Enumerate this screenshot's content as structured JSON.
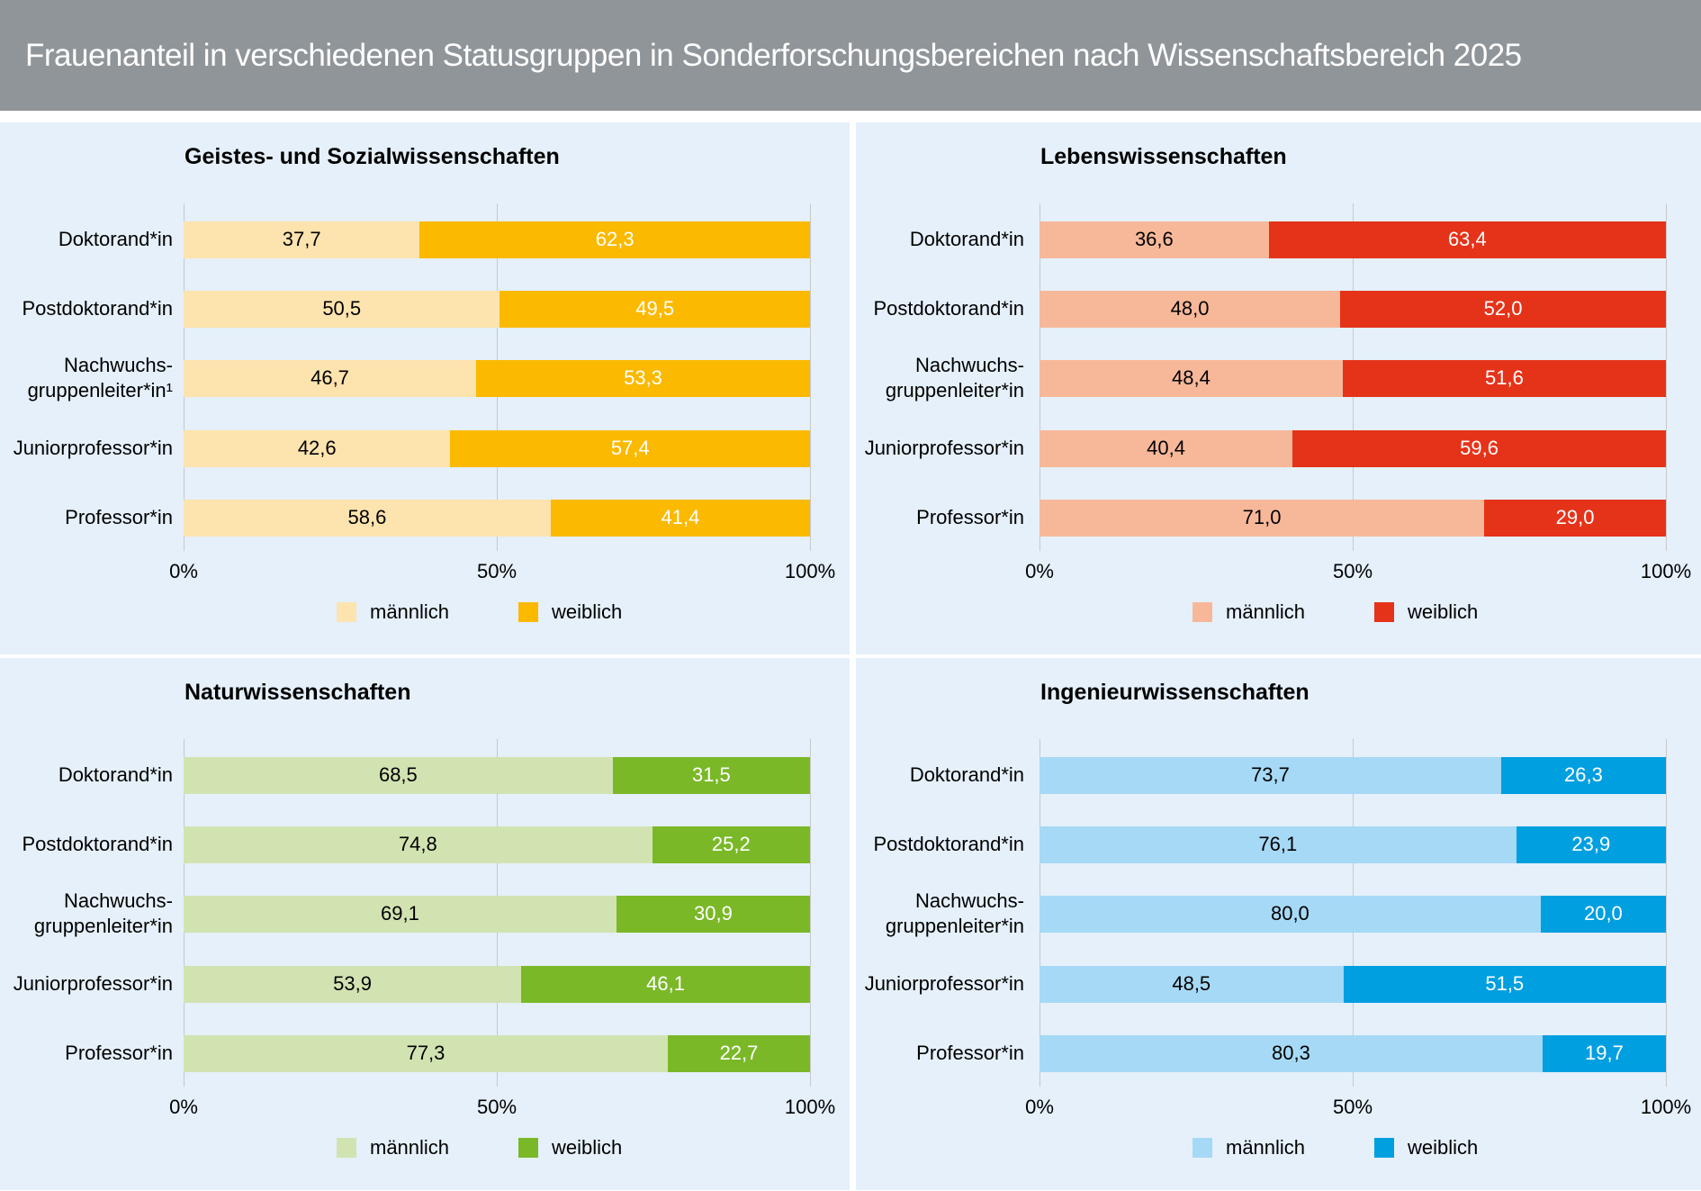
{
  "title": "Frauenanteil in verschiedenen Statusgruppen in Sonderforschungsbereichen nach Wissenschaftsbereich 2025",
  "chart_data": [
    {
      "type": "bar",
      "orientation": "horizontal",
      "stacked": true,
      "title": "Geistes- und Sozialwissenschaften",
      "categories": [
        "Doktorand*in",
        "Postdoktorand*in",
        "Nachwuchs-\ngruppenleiter*in¹",
        "Juniorprofessor*in",
        "Professor*in"
      ],
      "series": [
        {
          "name": "männlich",
          "color": "#fde3ae",
          "label_color": "#000000",
          "values": [
            37.7,
            50.5,
            46.7,
            42.6,
            58.6
          ],
          "value_labels": [
            "37,7",
            "50,5",
            "46,7",
            "42,6",
            "58,6"
          ]
        },
        {
          "name": "weiblich",
          "color": "#fbb900",
          "label_color": "#ffffff",
          "values": [
            62.3,
            49.5,
            53.3,
            57.4,
            41.4
          ],
          "value_labels": [
            "62,3",
            "49,5",
            "53,3",
            "57,4",
            "41,4"
          ]
        }
      ],
      "xlim": [
        0,
        100
      ],
      "xticks": [
        {
          "value": 0,
          "label": "0%"
        },
        {
          "value": 50,
          "label": "50%"
        },
        {
          "value": 100,
          "label": "100%"
        }
      ],
      "grid": true,
      "legend": "bottom"
    },
    {
      "type": "bar",
      "orientation": "horizontal",
      "stacked": true,
      "title": "Lebenswissenschaften",
      "categories": [
        "Doktorand*in",
        "Postdoktorand*in",
        "Nachwuchs-\ngruppenleiter*in",
        "Juniorprofessor*in",
        "Professor*in"
      ],
      "series": [
        {
          "name": "männlich",
          "color": "#f7b89a",
          "label_color": "#000000",
          "values": [
            36.6,
            48.0,
            48.4,
            40.4,
            71.0
          ],
          "value_labels": [
            "36,6",
            "48,0",
            "48,4",
            "40,4",
            "71,0"
          ]
        },
        {
          "name": "weiblich",
          "color": "#e5331a",
          "label_color": "#ffffff",
          "values": [
            63.4,
            52.0,
            51.6,
            59.6,
            29.0
          ],
          "value_labels": [
            "63,4",
            "52,0",
            "51,6",
            "59,6",
            "29,0"
          ]
        }
      ],
      "xlim": [
        0,
        100
      ],
      "xticks": [
        {
          "value": 0,
          "label": "0%"
        },
        {
          "value": 50,
          "label": "50%"
        },
        {
          "value": 100,
          "label": "100%"
        }
      ],
      "grid": true,
      "legend": "bottom"
    },
    {
      "type": "bar",
      "orientation": "horizontal",
      "stacked": true,
      "title": "Naturwissenschaften",
      "categories": [
        "Doktorand*in",
        "Postdoktorand*in",
        "Nachwuchs-\ngruppenleiter*in",
        "Juniorprofessor*in",
        "Professor*in"
      ],
      "series": [
        {
          "name": "männlich",
          "color": "#d2e3b2",
          "label_color": "#000000",
          "values": [
            68.5,
            74.8,
            69.1,
            53.9,
            77.3
          ],
          "value_labels": [
            "68,5",
            "74,8",
            "69,1",
            "53,9",
            "77,3"
          ]
        },
        {
          "name": "weiblich",
          "color": "#7ab828",
          "label_color": "#ffffff",
          "values": [
            31.5,
            25.2,
            30.9,
            46.1,
            22.7
          ],
          "value_labels": [
            "31,5",
            "25,2",
            "30,9",
            "46,1",
            "22,7"
          ]
        }
      ],
      "xlim": [
        0,
        100
      ],
      "xticks": [
        {
          "value": 0,
          "label": "0%"
        },
        {
          "value": 50,
          "label": "50%"
        },
        {
          "value": 100,
          "label": "100%"
        }
      ],
      "grid": true,
      "legend": "bottom"
    },
    {
      "type": "bar",
      "orientation": "horizontal",
      "stacked": true,
      "title": "Ingenieurwissenschaften",
      "categories": [
        "Doktorand*in",
        "Postdoktorand*in",
        "Nachwuchs-\ngruppenleiter*in",
        "Juniorprofessor*in",
        "Professor*in"
      ],
      "series": [
        {
          "name": "männlich",
          "color": "#a6d9f5",
          "label_color": "#000000",
          "values": [
            73.7,
            76.1,
            80.0,
            48.5,
            80.3
          ],
          "value_labels": [
            "73,7",
            "76,1",
            "80,0",
            "48,5",
            "80,3"
          ]
        },
        {
          "name": "weiblich",
          "color": "#009fe0",
          "label_color": "#ffffff",
          "values": [
            26.3,
            23.9,
            20.0,
            51.5,
            19.7
          ],
          "value_labels": [
            "26,3",
            "23,9",
            "20,0",
            "51,5",
            "19,7"
          ]
        }
      ],
      "xlim": [
        0,
        100
      ],
      "xticks": [
        {
          "value": 0,
          "label": "0%"
        },
        {
          "value": 50,
          "label": "50%"
        },
        {
          "value": 100,
          "label": "100%"
        }
      ],
      "grid": true,
      "legend": "bottom"
    }
  ]
}
